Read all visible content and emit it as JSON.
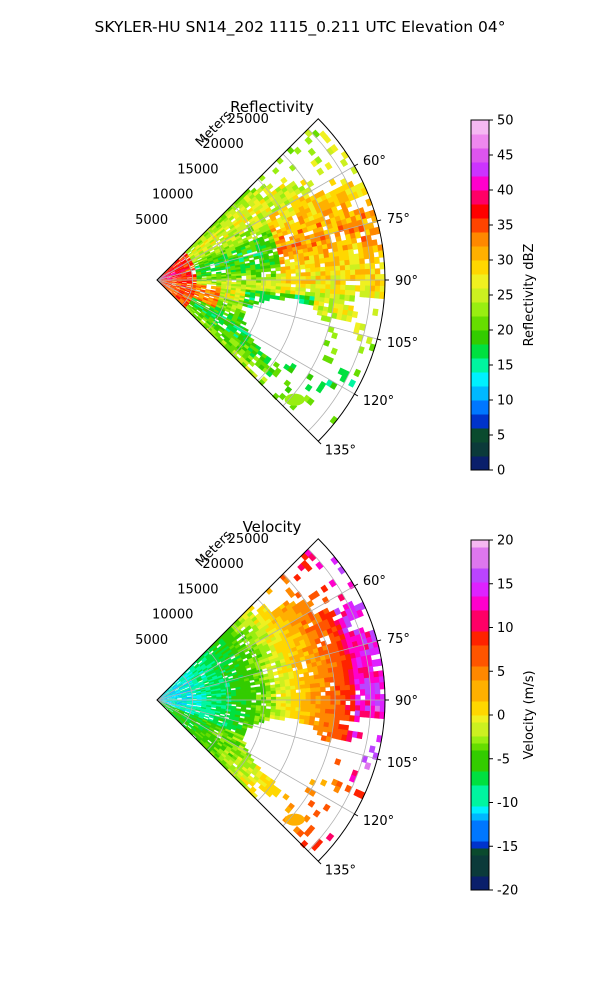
{
  "figure": {
    "suptitle": "SKYLER-HU  SN14_202  1115_0.211 UTC Elevation 04°"
  },
  "chart_data": [
    {
      "type": "heatmap",
      "title": "Reflectivity",
      "projection": "polar sector",
      "radial_label": "Meters",
      "radial_ticks": [
        "5000",
        "10000",
        "15000",
        "20000",
        "25000"
      ],
      "r_max": 32000,
      "angle_ticks": [
        "60°",
        "75°",
        "90°",
        "105°",
        "120°",
        "135°"
      ],
      "angle_range_deg": [
        45,
        135
      ],
      "grid": true,
      "colorbar": {
        "label": "Reflectivity dBZ",
        "ticks": [
          "0",
          "5",
          "10",
          "15",
          "20",
          "25",
          "30",
          "35",
          "40",
          "45",
          "50"
        ],
        "range": [
          0,
          50
        ]
      },
      "field_description_values": {
        "near_range_max": 37,
        "typical": 24,
        "band_60_75deg_max": 32,
        "echo_free_region_deg": [
          95,
          125
        ]
      }
    },
    {
      "type": "heatmap",
      "title": "Velocity",
      "projection": "polar sector",
      "radial_label": "Meters",
      "radial_ticks": [
        "5000",
        "10000",
        "15000",
        "20000",
        "25000"
      ],
      "r_max": 32000,
      "angle_ticks": [
        "60°",
        "75°",
        "90°",
        "105°",
        "120°",
        "135°"
      ],
      "angle_range_deg": [
        45,
        135
      ],
      "grid": true,
      "colorbar": {
        "label": "Velocity (m/s)",
        "ticks": [
          "-20",
          "-15",
          "-10",
          "-5",
          "0",
          "5",
          "10",
          "15",
          "20"
        ],
        "range": [
          -20,
          20
        ]
      },
      "field_description_values": {
        "near_range_min": -11,
        "far_range_max": 15,
        "echo_free_region_deg": [
          95,
          125
        ]
      }
    }
  ]
}
